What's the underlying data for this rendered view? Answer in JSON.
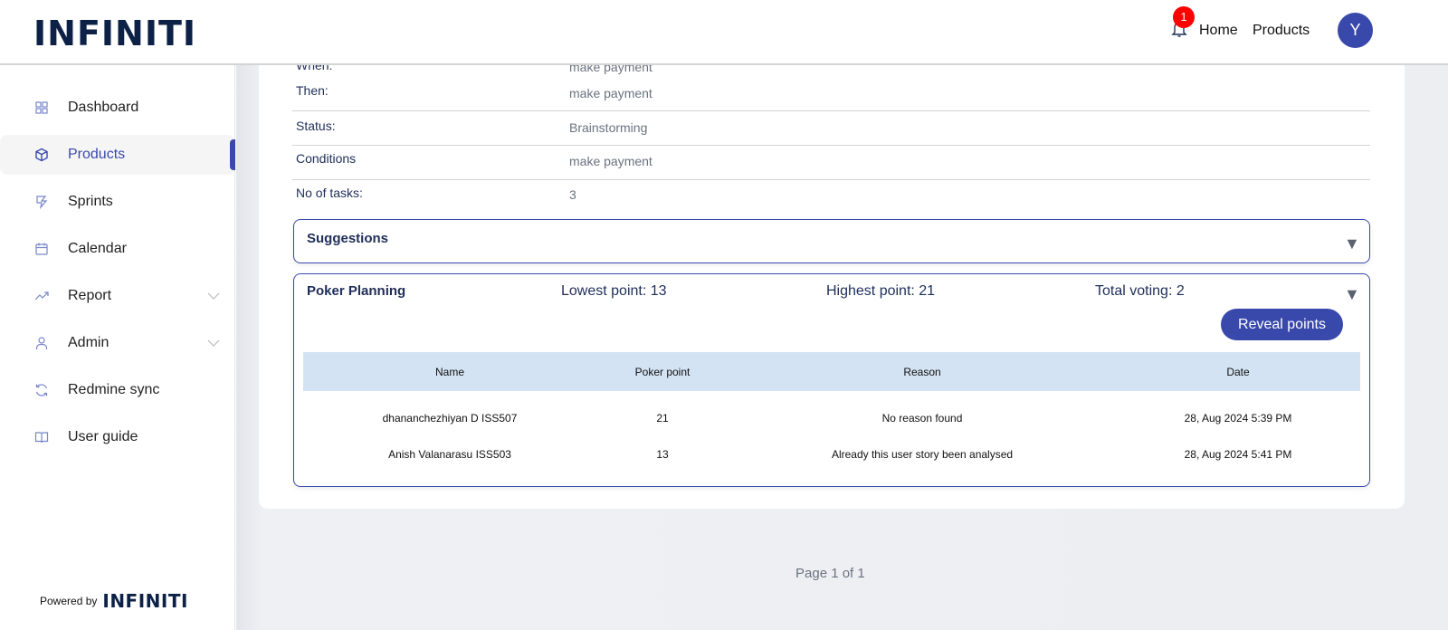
{
  "header": {
    "logo": "INFINITI",
    "notification_count": "1",
    "nav": [
      "Home",
      "Products"
    ],
    "avatar_initial": "Y"
  },
  "sidebar": {
    "items": [
      {
        "label": "Dashboard",
        "icon": "grid-icon"
      },
      {
        "label": "Products",
        "icon": "box-icon",
        "active": true
      },
      {
        "label": "Sprints",
        "icon": "sprint-icon"
      },
      {
        "label": "Calendar",
        "icon": "calendar-icon"
      },
      {
        "label": "Report",
        "icon": "trending-icon",
        "expandable": true
      },
      {
        "label": "Admin",
        "icon": "user-icon",
        "expandable": true
      },
      {
        "label": "Redmine sync",
        "icon": "sync-icon"
      },
      {
        "label": "User guide",
        "icon": "book-icon"
      }
    ],
    "powered_by": "Powered by",
    "powered_logo": "INFINITI"
  },
  "details": [
    {
      "label": "When:",
      "value": "make payment"
    },
    {
      "label": "Then:",
      "value": "make payment"
    },
    {
      "label": "Status:",
      "value": "Brainstorming"
    },
    {
      "label": "Conditions",
      "value": "make payment"
    },
    {
      "label": "No of tasks:",
      "value": "3"
    }
  ],
  "suggestions": {
    "title": "Suggestions"
  },
  "poker": {
    "title": "Poker Planning",
    "lowest": "Lowest point: 13",
    "highest": "Highest point: 21",
    "total": "Total voting: 2",
    "reveal_label": "Reveal points",
    "columns": [
      "Name",
      "Poker point",
      "Reason",
      "Date"
    ],
    "rows": [
      [
        "dhananchezhiyan D ISS507",
        "21",
        "No reason found",
        "28, Aug 2024 5:39 PM"
      ],
      [
        "Anish Valanarasu ISS503",
        "13",
        "Already this user story been analysed",
        "28, Aug 2024 5:41 PM"
      ]
    ]
  },
  "pagination": "Page 1 of 1",
  "colors": {
    "accent": "#3949ab",
    "brand": "#0d2147",
    "badge": "#ff0000",
    "table_header": "#d3e3f3"
  }
}
